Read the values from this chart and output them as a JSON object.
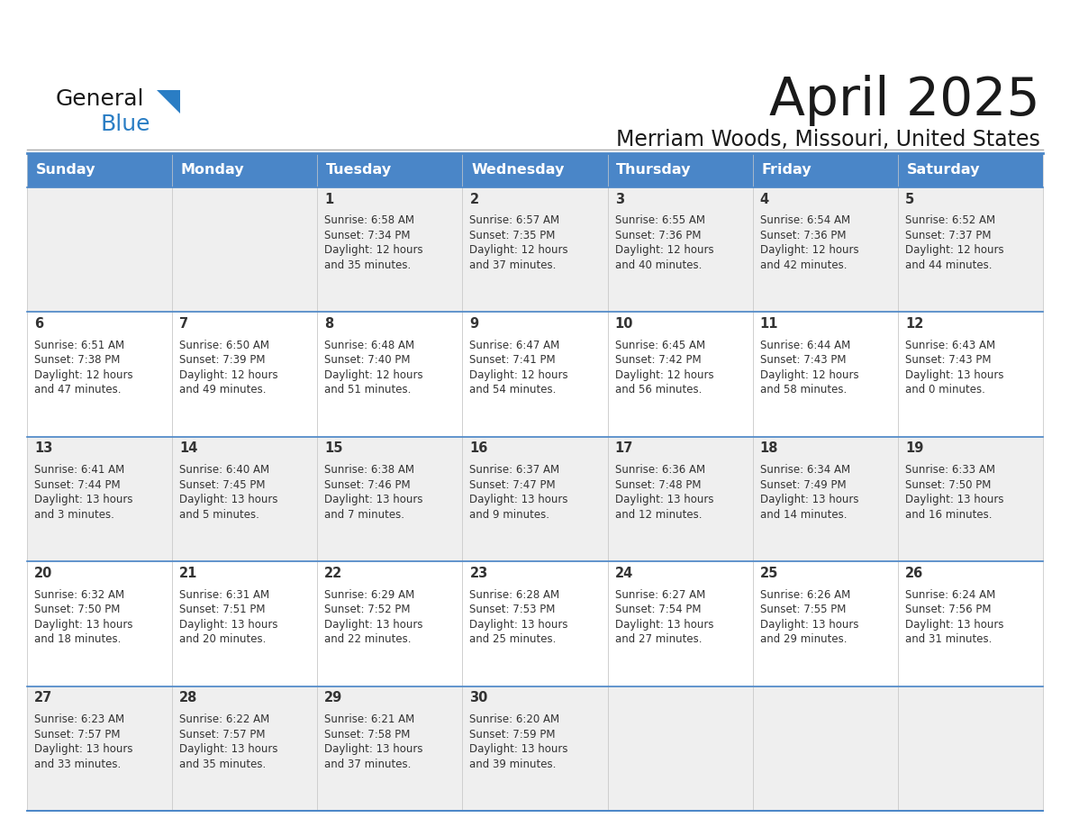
{
  "title": "April 2025",
  "subtitle": "Merriam Woods, Missouri, United States",
  "days_of_week": [
    "Sunday",
    "Monday",
    "Tuesday",
    "Wednesday",
    "Thursday",
    "Friday",
    "Saturday"
  ],
  "header_bg": "#4a86c8",
  "header_text_color": "#ffffff",
  "row_bg_odd": "#efefef",
  "row_bg_even": "#ffffff",
  "border_color": "#4a86c8",
  "cell_border_color": "#cccccc",
  "text_color": "#333333",
  "title_color": "#1a1a1a",
  "logo_general_color": "#1a1a1a",
  "logo_blue_color": "#2a7dc4",
  "logo_triangle_color": "#2a7dc4",
  "calendar": [
    [
      {
        "day": "",
        "lines": []
      },
      {
        "day": "",
        "lines": []
      },
      {
        "day": "1",
        "lines": [
          "Sunrise: 6:58 AM",
          "Sunset: 7:34 PM",
          "Daylight: 12 hours",
          "and 35 minutes."
        ]
      },
      {
        "day": "2",
        "lines": [
          "Sunrise: 6:57 AM",
          "Sunset: 7:35 PM",
          "Daylight: 12 hours",
          "and 37 minutes."
        ]
      },
      {
        "day": "3",
        "lines": [
          "Sunrise: 6:55 AM",
          "Sunset: 7:36 PM",
          "Daylight: 12 hours",
          "and 40 minutes."
        ]
      },
      {
        "day": "4",
        "lines": [
          "Sunrise: 6:54 AM",
          "Sunset: 7:36 PM",
          "Daylight: 12 hours",
          "and 42 minutes."
        ]
      },
      {
        "day": "5",
        "lines": [
          "Sunrise: 6:52 AM",
          "Sunset: 7:37 PM",
          "Daylight: 12 hours",
          "and 44 minutes."
        ]
      }
    ],
    [
      {
        "day": "6",
        "lines": [
          "Sunrise: 6:51 AM",
          "Sunset: 7:38 PM",
          "Daylight: 12 hours",
          "and 47 minutes."
        ]
      },
      {
        "day": "7",
        "lines": [
          "Sunrise: 6:50 AM",
          "Sunset: 7:39 PM",
          "Daylight: 12 hours",
          "and 49 minutes."
        ]
      },
      {
        "day": "8",
        "lines": [
          "Sunrise: 6:48 AM",
          "Sunset: 7:40 PM",
          "Daylight: 12 hours",
          "and 51 minutes."
        ]
      },
      {
        "day": "9",
        "lines": [
          "Sunrise: 6:47 AM",
          "Sunset: 7:41 PM",
          "Daylight: 12 hours",
          "and 54 minutes."
        ]
      },
      {
        "day": "10",
        "lines": [
          "Sunrise: 6:45 AM",
          "Sunset: 7:42 PM",
          "Daylight: 12 hours",
          "and 56 minutes."
        ]
      },
      {
        "day": "11",
        "lines": [
          "Sunrise: 6:44 AM",
          "Sunset: 7:43 PM",
          "Daylight: 12 hours",
          "and 58 minutes."
        ]
      },
      {
        "day": "12",
        "lines": [
          "Sunrise: 6:43 AM",
          "Sunset: 7:43 PM",
          "Daylight: 13 hours",
          "and 0 minutes."
        ]
      }
    ],
    [
      {
        "day": "13",
        "lines": [
          "Sunrise: 6:41 AM",
          "Sunset: 7:44 PM",
          "Daylight: 13 hours",
          "and 3 minutes."
        ]
      },
      {
        "day": "14",
        "lines": [
          "Sunrise: 6:40 AM",
          "Sunset: 7:45 PM",
          "Daylight: 13 hours",
          "and 5 minutes."
        ]
      },
      {
        "day": "15",
        "lines": [
          "Sunrise: 6:38 AM",
          "Sunset: 7:46 PM",
          "Daylight: 13 hours",
          "and 7 minutes."
        ]
      },
      {
        "day": "16",
        "lines": [
          "Sunrise: 6:37 AM",
          "Sunset: 7:47 PM",
          "Daylight: 13 hours",
          "and 9 minutes."
        ]
      },
      {
        "day": "17",
        "lines": [
          "Sunrise: 6:36 AM",
          "Sunset: 7:48 PM",
          "Daylight: 13 hours",
          "and 12 minutes."
        ]
      },
      {
        "day": "18",
        "lines": [
          "Sunrise: 6:34 AM",
          "Sunset: 7:49 PM",
          "Daylight: 13 hours",
          "and 14 minutes."
        ]
      },
      {
        "day": "19",
        "lines": [
          "Sunrise: 6:33 AM",
          "Sunset: 7:50 PM",
          "Daylight: 13 hours",
          "and 16 minutes."
        ]
      }
    ],
    [
      {
        "day": "20",
        "lines": [
          "Sunrise: 6:32 AM",
          "Sunset: 7:50 PM",
          "Daylight: 13 hours",
          "and 18 minutes."
        ]
      },
      {
        "day": "21",
        "lines": [
          "Sunrise: 6:31 AM",
          "Sunset: 7:51 PM",
          "Daylight: 13 hours",
          "and 20 minutes."
        ]
      },
      {
        "day": "22",
        "lines": [
          "Sunrise: 6:29 AM",
          "Sunset: 7:52 PM",
          "Daylight: 13 hours",
          "and 22 minutes."
        ]
      },
      {
        "day": "23",
        "lines": [
          "Sunrise: 6:28 AM",
          "Sunset: 7:53 PM",
          "Daylight: 13 hours",
          "and 25 minutes."
        ]
      },
      {
        "day": "24",
        "lines": [
          "Sunrise: 6:27 AM",
          "Sunset: 7:54 PM",
          "Daylight: 13 hours",
          "and 27 minutes."
        ]
      },
      {
        "day": "25",
        "lines": [
          "Sunrise: 6:26 AM",
          "Sunset: 7:55 PM",
          "Daylight: 13 hours",
          "and 29 minutes."
        ]
      },
      {
        "day": "26",
        "lines": [
          "Sunrise: 6:24 AM",
          "Sunset: 7:56 PM",
          "Daylight: 13 hours",
          "and 31 minutes."
        ]
      }
    ],
    [
      {
        "day": "27",
        "lines": [
          "Sunrise: 6:23 AM",
          "Sunset: 7:57 PM",
          "Daylight: 13 hours",
          "and 33 minutes."
        ]
      },
      {
        "day": "28",
        "lines": [
          "Sunrise: 6:22 AM",
          "Sunset: 7:57 PM",
          "Daylight: 13 hours",
          "and 35 minutes."
        ]
      },
      {
        "day": "29",
        "lines": [
          "Sunrise: 6:21 AM",
          "Sunset: 7:58 PM",
          "Daylight: 13 hours",
          "and 37 minutes."
        ]
      },
      {
        "day": "30",
        "lines": [
          "Sunrise: 6:20 AM",
          "Sunset: 7:59 PM",
          "Daylight: 13 hours",
          "and 39 minutes."
        ]
      },
      {
        "day": "",
        "lines": []
      },
      {
        "day": "",
        "lines": []
      },
      {
        "day": "",
        "lines": []
      }
    ]
  ]
}
